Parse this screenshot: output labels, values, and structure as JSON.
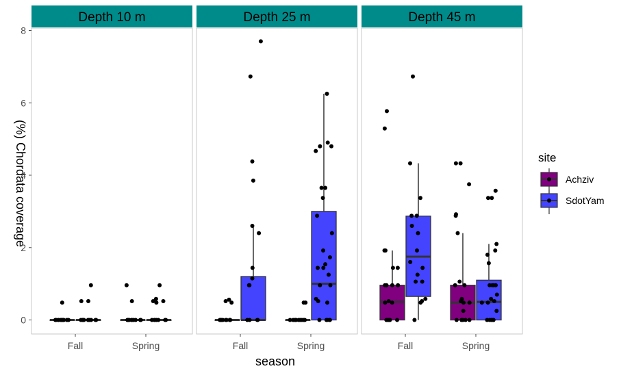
{
  "chart_data": {
    "type": "box",
    "xlabel": "season",
    "ylabel": "(%) Chordata coverage",
    "ylim": [
      -0.4,
      8.1
    ],
    "yticks": [
      0,
      2,
      4,
      6,
      8
    ],
    "categories": [
      "Fall",
      "Spring"
    ],
    "grid": false,
    "legend": {
      "title": "site",
      "position": "right",
      "items": [
        {
          "label": "Achziv",
          "color": "#800080"
        },
        {
          "label": "SdotYam",
          "color": "#4444ff"
        }
      ]
    },
    "strip_color": "#008b8b",
    "panels": [
      {
        "title": "Depth 10 m",
        "boxes": [
          {
            "season": "Fall",
            "site": "Achziv",
            "min": 0,
            "q1": 0,
            "median": 0,
            "q3": 0,
            "max": 0,
            "points": [
              0.48,
              0,
              0,
              0,
              0,
              0,
              0,
              0,
              0,
              0,
              0,
              0
            ]
          },
          {
            "season": "Fall",
            "site": "SdotYam",
            "min": 0,
            "q1": 0,
            "median": 0,
            "q3": 0,
            "max": 0,
            "points": [
              0.96,
              0.52,
              0.52,
              0,
              0,
              0,
              0,
              0,
              0,
              0,
              0,
              0
            ]
          },
          {
            "season": "Spring",
            "site": "Achziv",
            "min": 0,
            "q1": 0,
            "median": 0,
            "q3": 0,
            "max": 0,
            "points": [
              0.96,
              0.52,
              0,
              0,
              0,
              0,
              0,
              0,
              0,
              0,
              0,
              0
            ]
          },
          {
            "season": "Spring",
            "site": "SdotYam",
            "min": 0,
            "q1": 0,
            "median": 0,
            "q3": 0,
            "max": 0,
            "points": [
              0.96,
              0.58,
              0.52,
              0.52,
              0.48,
              0,
              0,
              0,
              0,
              0,
              0,
              0
            ]
          }
        ]
      },
      {
        "title": "Depth 25 m",
        "boxes": [
          {
            "season": "Fall",
            "site": "Achziv",
            "min": 0,
            "q1": 0,
            "median": 0,
            "q3": 0,
            "max": 0,
            "points": [
              0.56,
              0.52,
              0.48,
              0,
              0,
              0,
              0,
              0,
              0,
              0,
              0,
              0
            ]
          },
          {
            "season": "Fall",
            "site": "SdotYam",
            "min": 0,
            "q1": 0,
            "median": 0,
            "q3": 1.2,
            "max": 2.6,
            "points": [
              7.7,
              6.73,
              4.38,
              3.85,
              2.6,
              2.4,
              1.44,
              1.15,
              0.96,
              0.96,
              0,
              0,
              0,
              0
            ]
          },
          {
            "season": "Spring",
            "site": "Achziv",
            "min": 0,
            "q1": 0,
            "median": 0,
            "q3": 0,
            "max": 0,
            "points": [
              0.48,
              0.48,
              0,
              0,
              0,
              0,
              0,
              0,
              0,
              0,
              0,
              0
            ]
          },
          {
            "season": "Spring",
            "site": "SdotYam",
            "min": 0,
            "q1": 0,
            "median": 1.0,
            "q3": 3.0,
            "max": 6.25,
            "points": [
              6.25,
              4.9,
              4.8,
              4.8,
              4.67,
              3.65,
              3.65,
              3.37,
              2.88,
              2.4,
              1.92,
              1.73,
              1.54,
              1.44,
              1.44,
              1.25,
              0.96,
              0.96,
              0.58,
              0.52,
              0.48,
              0,
              0,
              0,
              0,
              0
            ]
          }
        ]
      },
      {
        "title": "Depth 45 m",
        "boxes": [
          {
            "season": "Fall",
            "site": "Achziv",
            "min": 0,
            "q1": 0,
            "median": 0.5,
            "q3": 0.96,
            "max": 1.92,
            "points": [
              5.77,
              5.29,
              1.92,
              1.92,
              1.44,
              1.44,
              0.96,
              0.96,
              0.96,
              0.96,
              0.52,
              0.48,
              0.48,
              0,
              0,
              0,
              0,
              0
            ]
          },
          {
            "season": "Fall",
            "site": "SdotYam",
            "min": 0,
            "q1": 0.65,
            "median": 1.75,
            "q3": 2.87,
            "max": 4.33,
            "points": [
              6.73,
              4.33,
              3.37,
              2.88,
              2.88,
              2.6,
              2.4,
              1.92,
              1.6,
              1.44,
              1.25,
              1.06,
              1.06,
              0.58,
              0.52,
              0.48,
              0
            ]
          },
          {
            "season": "Spring",
            "site": "Achziv",
            "min": 0,
            "q1": 0,
            "median": 0.48,
            "q3": 0.96,
            "max": 2.4,
            "points": [
              4.33,
              4.33,
              3.75,
              2.92,
              2.88,
              2.4,
              1.06,
              0.96,
              0.96,
              0.58,
              0.52,
              0.48,
              0.48,
              0.25,
              0,
              0,
              0,
              0,
              0
            ]
          },
          {
            "season": "Spring",
            "site": "SdotYam",
            "min": 0,
            "q1": 0,
            "median": 0.5,
            "q3": 1.1,
            "max": 2.1,
            "points": [
              3.57,
              3.37,
              3.37,
              2.1,
              1.92,
              1.8,
              1.57,
              0.96,
              0.96,
              0.96,
              0.96,
              0.7,
              0.58,
              0.52,
              0.48,
              0.48,
              0.25,
              0,
              0,
              0,
              0,
              0
            ]
          }
        ]
      }
    ]
  }
}
